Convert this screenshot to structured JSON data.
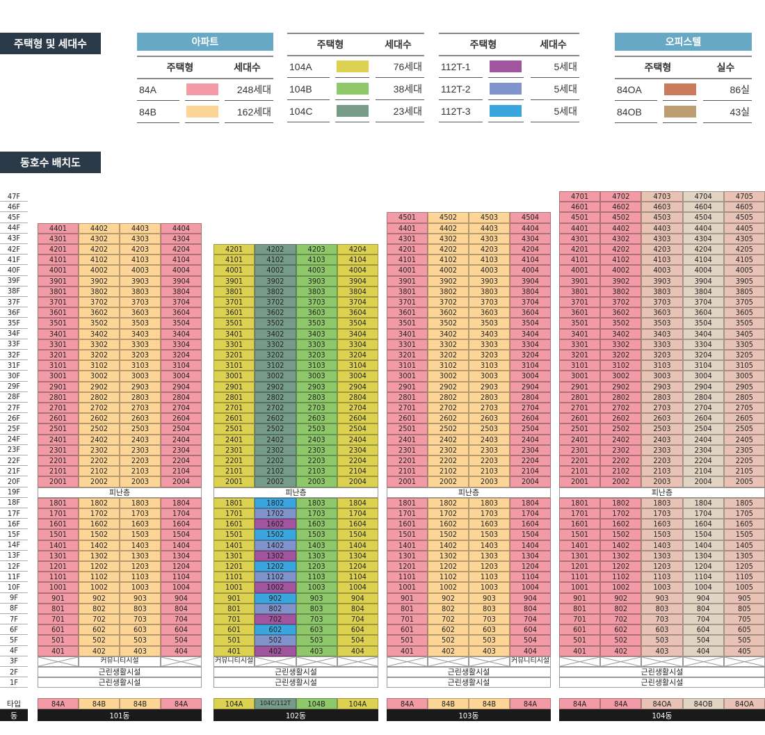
{
  "headers": {
    "legend_title": "주택형 및 세대수",
    "layout_title": "동호수 배치도"
  },
  "legend": [
    {
      "bar": "아파트",
      "col_type": "주택형",
      "col_count": "세대수",
      "rows": [
        {
          "type": "84A",
          "color": "#f29ba6",
          "count": "248세대"
        },
        {
          "type": "84B",
          "color": "#fdd597",
          "count": "162세대"
        }
      ]
    },
    {
      "bar": "",
      "col_type": "주택형",
      "col_count": "세대수",
      "rows": [
        {
          "type": "104A",
          "color": "#ddd152",
          "count": "76세대"
        },
        {
          "type": "104B",
          "color": "#8fc86a",
          "count": "38세대"
        },
        {
          "type": "104C",
          "color": "#779b89",
          "count": "23세대"
        }
      ]
    },
    {
      "bar": "",
      "col_type": "주택형",
      "col_count": "세대수",
      "rows": [
        {
          "type": "112T-1",
          "color": "#a0559e",
          "count": "5세대"
        },
        {
          "type": "112T-2",
          "color": "#8193cb",
          "count": "5세대"
        },
        {
          "type": "112T-3",
          "color": "#3ba6de",
          "count": "5세대"
        }
      ]
    },
    {
      "bar": "오피스텔",
      "col_type": "주택형",
      "col_count": "실수",
      "rows": [
        {
          "type": "84OA",
          "color": "#c97a5a",
          "count": "86실"
        },
        {
          "type": "84OB",
          "color": "#bd9d72",
          "count": "43실"
        }
      ]
    }
  ],
  "grid_colors": {
    "84A": "#f29ba6",
    "84B": "#fdd597",
    "104A": "#ddd152",
    "104B": "#8fc86a",
    "104C": "#779b89",
    "112T-1": "#a0559e",
    "112T-2": "#8193cb",
    "112T-3": "#3ba6de",
    "84OA": "#e8c3b5",
    "84OB": "#e2d4c3"
  },
  "floor_labels": [
    "47F",
    "46F",
    "45F",
    "44F",
    "43F",
    "42F",
    "41F",
    "40F",
    "39F",
    "38F",
    "37F",
    "36F",
    "35F",
    "34F",
    "33F",
    "32F",
    "31F",
    "30F",
    "29F",
    "28F",
    "27F",
    "26F",
    "25F",
    "24F",
    "23F",
    "22F",
    "21F",
    "20F",
    "19F",
    "18F",
    "17F",
    "16F",
    "15F",
    "14F",
    "13F",
    "12F",
    "11F",
    "10F",
    "9F",
    "8F",
    "7F",
    "6F",
    "5F",
    "4F",
    "3F",
    "2F",
    "1F"
  ],
  "row_labels": {
    "type": "타입",
    "dong": "동"
  },
  "refuge_floor": 19,
  "refuge_label": "피난층",
  "retail_label": "근린생활시설",
  "buildings": [
    {
      "name": "101동",
      "top_floor": 44,
      "columns": [
        "84A",
        "84B",
        "84B",
        "84A"
      ],
      "type_labels": [
        "84A",
        "84B",
        "84B",
        "84A"
      ],
      "floor3": [
        {
          "span": 1,
          "text": ""
        },
        {
          "span": 2,
          "text": "커뮤니티시설"
        },
        {
          "span": 1,
          "text": ""
        }
      ]
    },
    {
      "name": "102동",
      "top_floor": 42,
      "columns": [
        "104A",
        "104C",
        "104B",
        "104A"
      ],
      "type_labels": [
        "104A",
        "104C/112T",
        "104B",
        "104A"
      ],
      "column_overrides": {
        "1": {
          "18": "112T-3",
          "17": "112T-2",
          "16": "112T-1",
          "15": "112T-3",
          "14": "112T-2",
          "13": "112T-1",
          "12": "112T-3",
          "11": "112T-2",
          "10": "112T-1",
          "9": "112T-3",
          "8": "112T-2",
          "7": "112T-1",
          "6": "112T-3",
          "5": "112T-2",
          "4": "112T-1"
        }
      },
      "floor3": [
        {
          "span": 1,
          "text": "커뮤니티시설"
        },
        {
          "span": 1,
          "text": ""
        },
        {
          "span": 1,
          "text": ""
        },
        {
          "span": 1,
          "text": ""
        }
      ]
    },
    {
      "name": "103동",
      "top_floor": 45,
      "columns": [
        "84A",
        "84B",
        "84B",
        "84A"
      ],
      "type_labels": [
        "84A",
        "84B",
        "84B",
        "84A"
      ],
      "floor3": [
        {
          "span": 1,
          "text": ""
        },
        {
          "span": 1,
          "text": ""
        },
        {
          "span": 1,
          "text": ""
        },
        {
          "span": 1,
          "text": "커뮤니티시설"
        }
      ]
    },
    {
      "name": "104동",
      "top_floor": 47,
      "columns": [
        "84A",
        "84A",
        "84OA",
        "84OB",
        "84OA"
      ],
      "type_labels": [
        "84A",
        "84A",
        "84OA",
        "84OB",
        "84OA"
      ],
      "floor3": [
        {
          "span": 1,
          "text": ""
        },
        {
          "span": 1,
          "text": ""
        },
        {
          "span": 1,
          "text": ""
        },
        {
          "span": 1,
          "text": ""
        },
        {
          "span": 1,
          "text": ""
        }
      ]
    }
  ]
}
